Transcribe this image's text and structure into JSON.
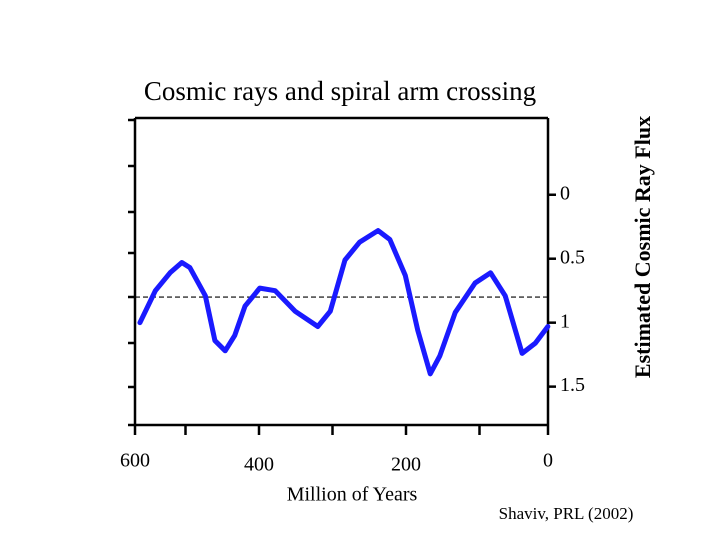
{
  "chart_data": {
    "type": "line",
    "title": "Cosmic rays and spiral arm crossing",
    "xlabel": "Million of Years",
    "ylabel": "Estimated Cosmic Ray Flux",
    "annotation": "Shaviv, PRL (2002)",
    "x": [
      562,
      541,
      521,
      505,
      494,
      473,
      460,
      446,
      433,
      419,
      399,
      378,
      351,
      320,
      303,
      283,
      263,
      238,
      222,
      201,
      184,
      167,
      154,
      133,
      106,
      85,
      65,
      42,
      24,
      7
    ],
    "series": [
      {
        "name": "Cosmic ray flux",
        "color": "#1a1aff",
        "values": [
          1.0,
          0.75,
          0.61,
          0.53,
          0.57,
          0.79,
          1.14,
          1.22,
          1.1,
          0.87,
          0.73,
          0.75,
          0.91,
          1.03,
          0.91,
          0.51,
          0.37,
          0.28,
          0.35,
          0.63,
          1.06,
          1.4,
          1.26,
          0.92,
          0.69,
          0.61,
          0.79,
          1.24,
          1.16,
          1.03
        ],
        "axis": "y2"
      }
    ],
    "xlim": [
      600,
      0
    ],
    "xticks": [
      600,
      400,
      200,
      0
    ],
    "xminorticks": [
      500,
      300,
      100
    ],
    "y2lim": [
      -0.6,
      1.8
    ],
    "y2ticks": [
      0,
      0.5,
      1,
      1.5
    ],
    "y2_inverted": true,
    "reference": 0.8
  }
}
